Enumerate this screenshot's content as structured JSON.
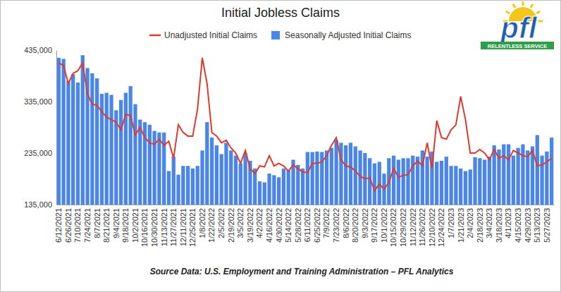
{
  "chart_data": {
    "type": "bar",
    "title": "Initial Jobless Claims",
    "annotations": [
      "Source Data: U.S. Employment and Training Administration – PFL Analytics",
      "pfl",
      "RELENTLESS SERVICE"
    ],
    "categories": [
      "6/12/2021",
      null,
      "6/26/2021",
      null,
      "7/10/2021",
      null,
      "7/24/2021",
      null,
      "8/7/2021",
      null,
      "8/21/2021",
      null,
      "9/4/2021",
      null,
      "9/18/2021",
      null,
      "10/2/2021",
      null,
      "10/16/2021",
      null,
      "10/30/2021",
      null,
      "11/13/2021",
      null,
      "11/27/2021",
      null,
      "12/11/2021",
      null,
      "12/25/2021",
      null,
      "1/8/2022",
      null,
      "1/22/2022",
      null,
      "2/5/2022",
      null,
      "2/19/2022",
      null,
      "3/5/2022",
      null,
      "3/19/2022",
      null,
      "4/2/2022",
      null,
      "4/16/2022",
      null,
      "4/30/2022",
      null,
      "5/14/2022",
      null,
      "5/28/2022",
      null,
      "6/11/2022",
      null,
      "6/25/2022",
      null,
      "7/9/2022",
      null,
      "7/23/2022",
      null,
      "8/6/2022",
      null,
      "8/20/2022",
      null,
      "9/3/2022",
      null,
      "9/17/2022",
      null,
      "10/1/2022",
      null,
      "10/15/2022",
      null,
      "10/29/2022",
      null,
      "11/12/2022",
      null,
      "11/26/2022",
      null,
      "12/10/2022",
      null,
      "12/24/2022",
      null,
      "1/7/2023",
      null,
      "1/21/2023",
      null,
      "2/4/2023",
      null,
      "2/18/2023",
      null,
      "3/4/2023",
      null,
      "3/18/2023",
      null,
      "4/1/2023",
      null,
      "4/15/2023",
      null,
      "4/29/2023",
      null,
      "5/13/2023",
      null,
      "5/27/2023",
      null
    ],
    "series": [
      {
        "name": "Unadjusted Initial Claims",
        "type": "line",
        "color": "#e0392b",
        "values": [
          410000,
          405000,
          370000,
          390000,
          395000,
          410000,
          350000,
          330000,
          328000,
          315000,
          305000,
          300000,
          295000,
          280000,
          310000,
          308000,
          270000,
          285000,
          265000,
          255000,
          252000,
          262000,
          250000,
          258000,
          225000,
          290000,
          275000,
          268000,
          268000,
          320000,
          420000,
          370000,
          275000,
          268000,
          255000,
          260000,
          245000,
          235000,
          215000,
          240000,
          205000,
          195000,
          210000,
          208000,
          230000,
          210000,
          215000,
          210000,
          200000,
          212000,
          205000,
          198000,
          197000,
          215000,
          215000,
          218000,
          230000,
          250000,
          265000,
          222000,
          210000,
          208000,
          200000,
          190000,
          185000,
          187000,
          162000,
          175000,
          165000,
          178000,
          205000,
          188000,
          192000,
          193000,
          210000,
          220000,
          210000,
          255000,
          205000,
          298000,
          265000,
          262000,
          280000,
          290000,
          345000,
          300000,
          235000,
          235000,
          242000,
          235000,
          222000,
          242000,
          225000,
          230000,
          222000,
          240000,
          235000,
          230000,
          228000,
          240000,
          210000,
          212000,
          218000,
          225000
        ]
      },
      {
        "name": "Seasonally Adjusted Initial Claims",
        "type": "bar",
        "color": "#4a86e8",
        "values": [
          420000,
          418000,
          375000,
          388000,
          372000,
          425000,
          400000,
          390000,
          380000,
          350000,
          352000,
          348000,
          318000,
          338000,
          352000,
          365000,
          330000,
          300000,
          295000,
          290000,
          278000,
          275000,
          275000,
          200000,
          228000,
          193000,
          210000,
          210000,
          205000,
          210000,
          240000,
          295000,
          265000,
          250000,
          233000,
          255000,
          240000,
          230000,
          215000,
          235000,
          220000,
          205000,
          180000,
          178000,
          195000,
          192000,
          188000,
          205000,
          202000,
          222000,
          212000,
          205000,
          237000,
          237000,
          238000,
          237000,
          240000,
          245000,
          260000,
          255000,
          250000,
          255000,
          248000,
          240000,
          235000,
          225000,
          215000,
          218000,
          195000,
          225000,
          230000,
          222000,
          225000,
          225000,
          230000,
          228000,
          240000,
          228000,
          238000,
          218000,
          220000,
          228000,
          210000,
          210000,
          205000,
          200000,
          203000,
          227000,
          225000,
          222000,
          228000,
          250000,
          242000,
          252000,
          252000,
          230000,
          245000,
          252000,
          240000,
          248000,
          270000,
          230000,
          238000,
          265000
        ]
      }
    ],
    "ylim": [
      135000,
      435000
    ],
    "yticks": [
      {
        "value": 135000,
        "label": "135,000"
      },
      {
        "value": 235000,
        "label": "235,000"
      },
      {
        "value": 335000,
        "label": "335,000"
      },
      {
        "value": 435000,
        "label": "435,000"
      }
    ],
    "grid": false,
    "legend": "top"
  }
}
